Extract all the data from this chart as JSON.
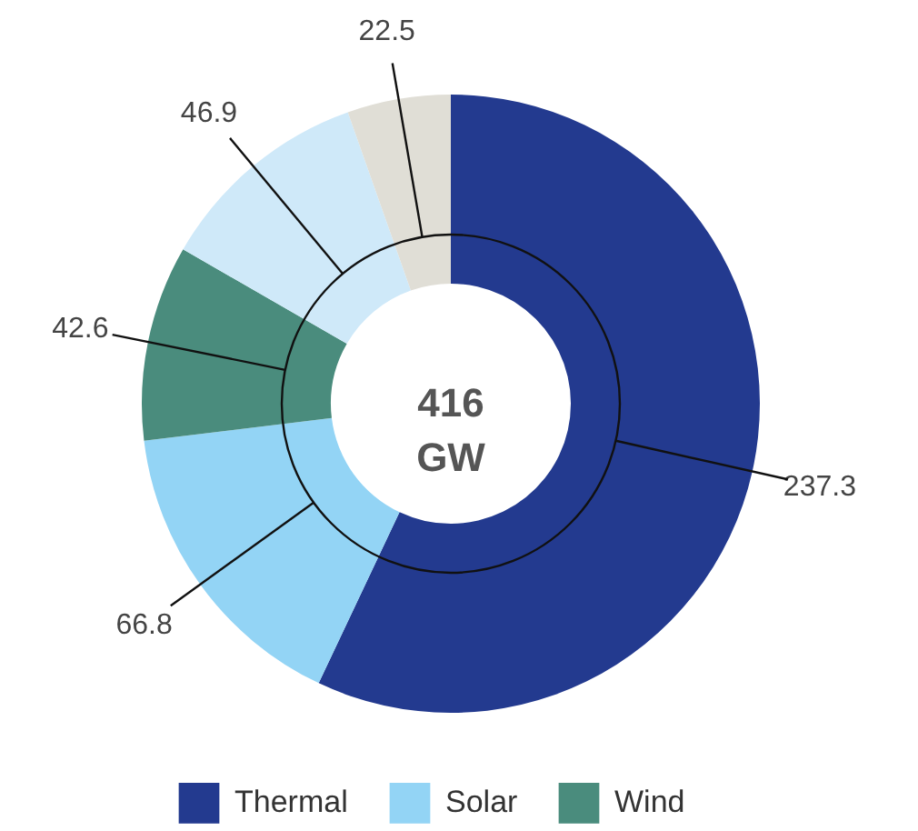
{
  "chart_data": {
    "type": "donut",
    "categories": [
      "Thermal",
      "Solar",
      "Wind",
      null,
      null
    ],
    "values": [
      237.3,
      66.8,
      42.6,
      46.9,
      22.5
    ],
    "colors": [
      "#233a8f",
      "#93d4f5",
      "#4a8c7d",
      "#cfe9f9",
      "#e0ded6"
    ],
    "data_labels": true,
    "legend": "bottom",
    "annotations": [
      "416 GW"
    ]
  }
}
